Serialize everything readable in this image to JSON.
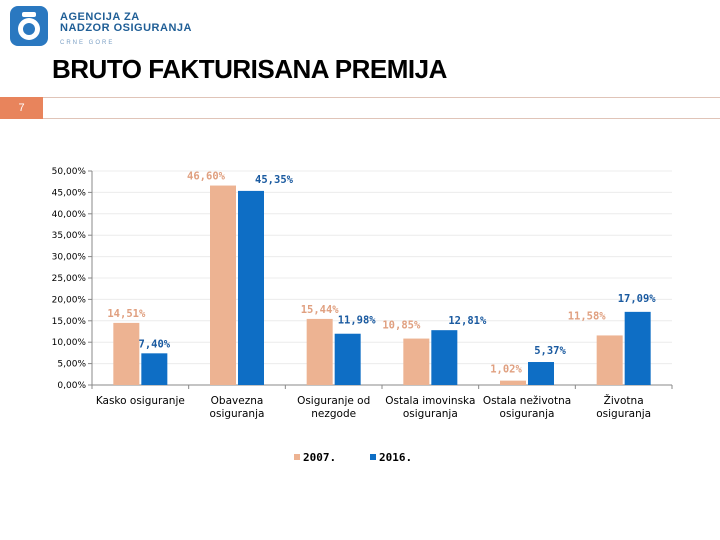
{
  "logo": {
    "line1": "AGENCIJA ZA",
    "line2": "NADZOR OSIGURANJA",
    "line3": "CRNE GORE"
  },
  "title": "BRUTO FAKTURISANA PREMIJA",
  "slide_number": "7",
  "colors": {
    "s2007": "#edb392",
    "s2016": "#0e6ec5",
    "accent": "#e8845c",
    "label2007": "#e0a080",
    "label2016": "#1a5aa0"
  },
  "chart_data": {
    "type": "bar",
    "categories": [
      [
        "Kasko osiguranje"
      ],
      [
        "Obavezna",
        "osiguranja"
      ],
      [
        "Osiguranje od",
        "nezgode"
      ],
      [
        "Ostala imovinska",
        "osiguranja"
      ],
      [
        "Ostala neživotna",
        "osiguranja"
      ],
      [
        "Životna",
        "osiguranja"
      ]
    ],
    "series": [
      {
        "name": "2007.",
        "values": [
          14.51,
          46.6,
          15.44,
          10.85,
          1.02,
          11.58
        ],
        "labels": [
          "14,51%",
          "46,60%",
          "15,44%",
          "10,85%",
          "1,02%",
          "11,58%"
        ]
      },
      {
        "name": "2016.",
        "values": [
          7.4,
          45.35,
          11.98,
          12.81,
          5.37,
          17.09
        ],
        "labels": [
          "7,40%",
          "45,35%",
          "11,98%",
          "12,81%",
          "5,37%",
          "17,09%"
        ]
      }
    ],
    "yticks": [
      "0,00%",
      "5,00%",
      "10,00%",
      "15,00%",
      "20,00%",
      "25,00%",
      "30,00%",
      "35,00%",
      "40,00%",
      "45,00%",
      "50,00%"
    ],
    "ylim": [
      0,
      50
    ],
    "legend_position": "bottom"
  }
}
